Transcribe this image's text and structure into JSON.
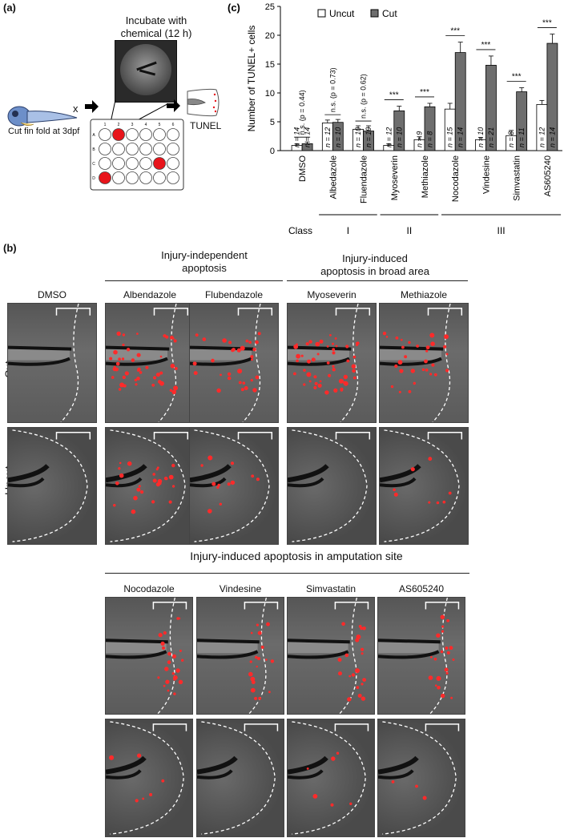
{
  "panel_a": {
    "label": "(a)",
    "step1_label": "Cut fin fold at 3dpf",
    "step1_mark": "x",
    "step2_title_line1": "Incubate with",
    "step2_title_line2": "chemical (12 h)",
    "plate_cols": [
      "1",
      "2",
      "3",
      "4",
      "5",
      "6"
    ],
    "plate_rows": [
      "A",
      "B",
      "C",
      "D"
    ],
    "plate_red_wells": [
      [
        0,
        1
      ],
      [
        2,
        4
      ],
      [
        3,
        0
      ]
    ],
    "step3_label": "TUNEL",
    "accent_red": "#e8141b"
  },
  "panel_b": {
    "label": "(b)",
    "group1": {
      "line1": "Injury-independent",
      "line2": "apoptosis"
    },
    "group2": {
      "line1": "Injury-induced",
      "line2": "apoptosis in broad area"
    },
    "group3": "Injury-induced apoptosis in amputation site",
    "row_cut": "Cut",
    "row_uncut": "Uncut",
    "top_images": [
      "DMSO",
      "Albendazole",
      "Flubendazole",
      "Myoseverin",
      "Methiazole"
    ],
    "bottom_images": [
      "Nocodazole",
      "Vindesine",
      "Simvastatin",
      "AS605240"
    ]
  },
  "chart_data": {
    "type": "bar",
    "panel_label": "(c)",
    "ylabel": "Number of TUNEL+ cells",
    "ylim": [
      0,
      25
    ],
    "yticks": [
      0,
      5,
      10,
      15,
      20,
      25
    ],
    "legend": [
      "Uncut",
      "Cut"
    ],
    "legend_position": "top",
    "categories": [
      "DMSO",
      "Albedazole",
      "Fluendazole",
      "Myoseverin",
      "Methiazole",
      "Nocodazole",
      "Vindesine",
      "Simvastatin",
      "AS605240"
    ],
    "series": [
      {
        "name": "Uncut",
        "color": "#ffffff",
        "values": [
          0.9,
          4.8,
          3.7,
          0.9,
          1.9,
          7.2,
          1.9,
          2.6,
          8.0
        ],
        "errors": [
          0.3,
          0.5,
          0.6,
          0.3,
          0.5,
          1.0,
          0.4,
          0.9,
          0.7
        ],
        "n": [
          "n = 14",
          "n = 12",
          "n = 10",
          "n = 12",
          "n = 9",
          "n = 15",
          "n = 10",
          "n = 8",
          "n = 12"
        ]
      },
      {
        "name": "Cut",
        "color": "#6e6e6e",
        "values": [
          1.2,
          4.9,
          3.4,
          6.9,
          7.6,
          17.0,
          14.8,
          10.2,
          18.6
        ],
        "errors": [
          0.3,
          0.5,
          0.9,
          0.8,
          0.6,
          1.8,
          1.6,
          0.7,
          1.6
        ],
        "n": [
          "n = 14",
          "n = 10",
          "n = 10",
          "n = 10",
          "n = 8",
          "n = 14",
          "n = 21",
          "n = 11",
          "n = 14"
        ]
      }
    ],
    "significance": [
      "n.s. (p = 0.44)",
      "n.s. (p = 0.73)",
      "n.s. (p = 0.62)",
      "***",
      "***",
      "***",
      "***",
      "***",
      "***"
    ],
    "class_label": "Class",
    "classes": [
      {
        "name": "I",
        "from": 1,
        "to": 2
      },
      {
        "name": "II",
        "from": 3,
        "to": 4
      },
      {
        "name": "III",
        "from": 5,
        "to": 8
      }
    ]
  }
}
